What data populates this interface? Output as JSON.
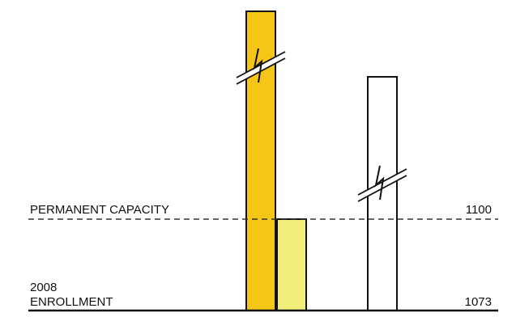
{
  "chart_data": {
    "type": "bar",
    "reference_lines": [
      {
        "label": "PERMANENT CAPACITY",
        "value": 1100,
        "value_label": "1100",
        "style": "dashed"
      },
      {
        "label_line1": "2008",
        "label_line2": "ENROLLMENT",
        "value": 1073,
        "value_label": "1073",
        "style": "solid"
      }
    ],
    "bars": [
      {
        "color": "#F5C518",
        "stroke": "#111111",
        "axis_break": true
      },
      {
        "color": "#F2EC78",
        "stroke": "#111111",
        "value": 1100,
        "axis_break": false
      },
      {
        "color": "#FFFFFF",
        "stroke": "#111111",
        "axis_break": true
      }
    ]
  }
}
